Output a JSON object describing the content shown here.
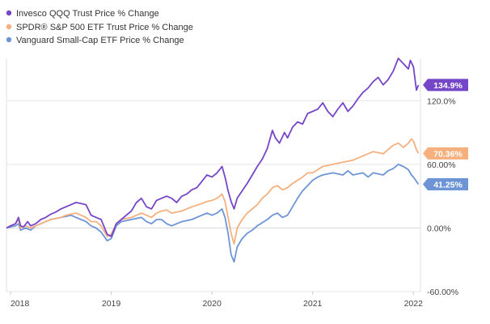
{
  "chart_data": {
    "type": "line",
    "grid": true,
    "legend_position": "top-left",
    "ylim": [
      -60,
      160
    ],
    "y_ticks": [
      {
        "value": 120,
        "label": "120.0%"
      },
      {
        "value": 60,
        "label": "60.00%"
      },
      {
        "value": 0,
        "label": "0.00%"
      },
      {
        "value": -60,
        "label": "-60.00%"
      }
    ],
    "x_ticks": [
      {
        "value": 2018,
        "label": "2018"
      },
      {
        "value": 2019,
        "label": "2019"
      },
      {
        "value": 2020,
        "label": "2020"
      },
      {
        "value": 2021,
        "label": "2021"
      },
      {
        "value": 2022,
        "label": "2022"
      }
    ],
    "xlim": [
      2017.96,
      2022.07
    ],
    "series": [
      {
        "name": "Invesco QQQ Trust Price % Change",
        "color": "#7646c8",
        "end_label": "134.9%",
        "points": [
          [
            2017.96,
            0
          ],
          [
            2018.0,
            2
          ],
          [
            2018.05,
            4
          ],
          [
            2018.08,
            10
          ],
          [
            2018.1,
            2
          ],
          [
            2018.13,
            1
          ],
          [
            2018.17,
            6
          ],
          [
            2018.2,
            2
          ],
          [
            2018.25,
            4
          ],
          [
            2018.3,
            8
          ],
          [
            2018.35,
            10
          ],
          [
            2018.4,
            13
          ],
          [
            2018.45,
            15
          ],
          [
            2018.5,
            18
          ],
          [
            2018.55,
            20
          ],
          [
            2018.6,
            22
          ],
          [
            2018.65,
            24
          ],
          [
            2018.7,
            23
          ],
          [
            2018.75,
            22
          ],
          [
            2018.8,
            12
          ],
          [
            2018.85,
            10
          ],
          [
            2018.9,
            8
          ],
          [
            2018.96,
            -6
          ],
          [
            2019.0,
            -8
          ],
          [
            2019.05,
            4
          ],
          [
            2019.1,
            8
          ],
          [
            2019.15,
            12
          ],
          [
            2019.2,
            16
          ],
          [
            2019.25,
            24
          ],
          [
            2019.3,
            28
          ],
          [
            2019.35,
            20
          ],
          [
            2019.4,
            18
          ],
          [
            2019.45,
            26
          ],
          [
            2019.5,
            28
          ],
          [
            2019.55,
            30
          ],
          [
            2019.6,
            28
          ],
          [
            2019.65,
            24
          ],
          [
            2019.7,
            30
          ],
          [
            2019.75,
            32
          ],
          [
            2019.8,
            36
          ],
          [
            2019.85,
            38
          ],
          [
            2019.9,
            44
          ],
          [
            2019.95,
            50
          ],
          [
            2020.0,
            48
          ],
          [
            2020.05,
            52
          ],
          [
            2020.1,
            58
          ],
          [
            2020.13,
            48
          ],
          [
            2020.16,
            35
          ],
          [
            2020.19,
            25
          ],
          [
            2020.22,
            18
          ],
          [
            2020.25,
            28
          ],
          [
            2020.3,
            35
          ],
          [
            2020.35,
            42
          ],
          [
            2020.4,
            50
          ],
          [
            2020.45,
            58
          ],
          [
            2020.5,
            65
          ],
          [
            2020.55,
            75
          ],
          [
            2020.6,
            92
          ],
          [
            2020.63,
            85
          ],
          [
            2020.67,
            80
          ],
          [
            2020.72,
            90
          ],
          [
            2020.75,
            85
          ],
          [
            2020.8,
            95
          ],
          [
            2020.85,
            100
          ],
          [
            2020.9,
            98
          ],
          [
            2020.95,
            108
          ],
          [
            2021.0,
            110
          ],
          [
            2021.05,
            112
          ],
          [
            2021.1,
            118
          ],
          [
            2021.15,
            110
          ],
          [
            2021.2,
            105
          ],
          [
            2021.25,
            112
          ],
          [
            2021.3,
            118
          ],
          [
            2021.35,
            110
          ],
          [
            2021.4,
            115
          ],
          [
            2021.45,
            122
          ],
          [
            2021.5,
            128
          ],
          [
            2021.55,
            132
          ],
          [
            2021.6,
            138
          ],
          [
            2021.65,
            142
          ],
          [
            2021.7,
            135
          ],
          [
            2021.75,
            140
          ],
          [
            2021.8,
            148
          ],
          [
            2021.85,
            160
          ],
          [
            2021.9,
            155
          ],
          [
            2021.95,
            150
          ],
          [
            2021.97,
            158
          ],
          [
            2022.0,
            152
          ],
          [
            2022.03,
            130
          ],
          [
            2022.05,
            134.9
          ]
        ]
      },
      {
        "name": "SPDR® S&P 500 ETF Trust Price % Change",
        "color": "#f5b07e",
        "end_label": "70.36%",
        "points": [
          [
            2017.96,
            0
          ],
          [
            2018.0,
            2
          ],
          [
            2018.05,
            4
          ],
          [
            2018.08,
            8
          ],
          [
            2018.1,
            0
          ],
          [
            2018.15,
            2
          ],
          [
            2018.2,
            0
          ],
          [
            2018.25,
            2
          ],
          [
            2018.3,
            4
          ],
          [
            2018.35,
            6
          ],
          [
            2018.4,
            8
          ],
          [
            2018.45,
            9
          ],
          [
            2018.5,
            10
          ],
          [
            2018.55,
            12
          ],
          [
            2018.6,
            13
          ],
          [
            2018.65,
            14
          ],
          [
            2018.7,
            12
          ],
          [
            2018.75,
            10
          ],
          [
            2018.8,
            6
          ],
          [
            2018.85,
            6
          ],
          [
            2018.9,
            2
          ],
          [
            2018.96,
            -8
          ],
          [
            2019.0,
            -6
          ],
          [
            2019.05,
            4
          ],
          [
            2019.1,
            8
          ],
          [
            2019.2,
            10
          ],
          [
            2019.3,
            14
          ],
          [
            2019.35,
            12
          ],
          [
            2019.4,
            10
          ],
          [
            2019.45,
            14
          ],
          [
            2019.5,
            16
          ],
          [
            2019.55,
            17
          ],
          [
            2019.6,
            14
          ],
          [
            2019.7,
            16
          ],
          [
            2019.8,
            20
          ],
          [
            2019.9,
            23
          ],
          [
            2019.95,
            25
          ],
          [
            2020.0,
            26
          ],
          [
            2020.05,
            28
          ],
          [
            2020.1,
            32
          ],
          [
            2020.13,
            25
          ],
          [
            2020.16,
            10
          ],
          [
            2020.19,
            -5
          ],
          [
            2020.22,
            -15
          ],
          [
            2020.25,
            0
          ],
          [
            2020.3,
            8
          ],
          [
            2020.35,
            14
          ],
          [
            2020.4,
            18
          ],
          [
            2020.45,
            22
          ],
          [
            2020.5,
            28
          ],
          [
            2020.55,
            32
          ],
          [
            2020.6,
            38
          ],
          [
            2020.65,
            40
          ],
          [
            2020.7,
            36
          ],
          [
            2020.75,
            38
          ],
          [
            2020.8,
            42
          ],
          [
            2020.85,
            45
          ],
          [
            2020.9,
            48
          ],
          [
            2020.95,
            52
          ],
          [
            2021.0,
            52
          ],
          [
            2021.05,
            55
          ],
          [
            2021.1,
            58
          ],
          [
            2021.2,
            60
          ],
          [
            2021.3,
            62
          ],
          [
            2021.4,
            64
          ],
          [
            2021.5,
            68
          ],
          [
            2021.55,
            70
          ],
          [
            2021.6,
            72
          ],
          [
            2021.7,
            70
          ],
          [
            2021.75,
            74
          ],
          [
            2021.8,
            78
          ],
          [
            2021.85,
            80
          ],
          [
            2021.9,
            76
          ],
          [
            2021.95,
            80
          ],
          [
            2021.98,
            84
          ],
          [
            2022.0,
            82
          ],
          [
            2022.03,
            74
          ],
          [
            2022.05,
            70.36
          ]
        ]
      },
      {
        "name": "Vanguard Small-Cap ETF Price % Change",
        "color": "#6d95d6",
        "end_label": "41.25%",
        "points": [
          [
            2017.96,
            0
          ],
          [
            2018.0,
            1
          ],
          [
            2018.05,
            2
          ],
          [
            2018.08,
            4
          ],
          [
            2018.1,
            -2
          ],
          [
            2018.15,
            0
          ],
          [
            2018.2,
            -2
          ],
          [
            2018.25,
            2
          ],
          [
            2018.3,
            4
          ],
          [
            2018.35,
            6
          ],
          [
            2018.4,
            8
          ],
          [
            2018.45,
            9
          ],
          [
            2018.5,
            10
          ],
          [
            2018.55,
            11
          ],
          [
            2018.6,
            12
          ],
          [
            2018.65,
            10
          ],
          [
            2018.7,
            8
          ],
          [
            2018.75,
            6
          ],
          [
            2018.8,
            2
          ],
          [
            2018.85,
            0
          ],
          [
            2018.9,
            -4
          ],
          [
            2018.96,
            -12
          ],
          [
            2019.0,
            -10
          ],
          [
            2019.05,
            2
          ],
          [
            2019.1,
            6
          ],
          [
            2019.2,
            8
          ],
          [
            2019.3,
            10
          ],
          [
            2019.35,
            6
          ],
          [
            2019.4,
            4
          ],
          [
            2019.45,
            8
          ],
          [
            2019.5,
            8
          ],
          [
            2019.55,
            4
          ],
          [
            2019.6,
            2
          ],
          [
            2019.7,
            6
          ],
          [
            2019.8,
            8
          ],
          [
            2019.9,
            12
          ],
          [
            2019.95,
            14
          ],
          [
            2020.0,
            12
          ],
          [
            2020.05,
            14
          ],
          [
            2020.1,
            18
          ],
          [
            2020.13,
            10
          ],
          [
            2020.16,
            -5
          ],
          [
            2020.19,
            -25
          ],
          [
            2020.22,
            -32
          ],
          [
            2020.25,
            -18
          ],
          [
            2020.3,
            -10
          ],
          [
            2020.35,
            -5
          ],
          [
            2020.4,
            -2
          ],
          [
            2020.45,
            2
          ],
          [
            2020.5,
            5
          ],
          [
            2020.55,
            8
          ],
          [
            2020.6,
            12
          ],
          [
            2020.65,
            14
          ],
          [
            2020.7,
            10
          ],
          [
            2020.75,
            12
          ],
          [
            2020.8,
            20
          ],
          [
            2020.85,
            28
          ],
          [
            2020.9,
            35
          ],
          [
            2020.95,
            40
          ],
          [
            2021.0,
            45
          ],
          [
            2021.05,
            48
          ],
          [
            2021.1,
            50
          ],
          [
            2021.2,
            52
          ],
          [
            2021.3,
            50
          ],
          [
            2021.35,
            54
          ],
          [
            2021.4,
            50
          ],
          [
            2021.5,
            52
          ],
          [
            2021.55,
            48
          ],
          [
            2021.6,
            52
          ],
          [
            2021.7,
            50
          ],
          [
            2021.75,
            54
          ],
          [
            2021.8,
            56
          ],
          [
            2021.85,
            60
          ],
          [
            2021.9,
            58
          ],
          [
            2021.95,
            55
          ],
          [
            2021.98,
            50
          ],
          [
            2022.0,
            48
          ],
          [
            2022.03,
            44
          ],
          [
            2022.05,
            41.25
          ]
        ]
      }
    ]
  }
}
